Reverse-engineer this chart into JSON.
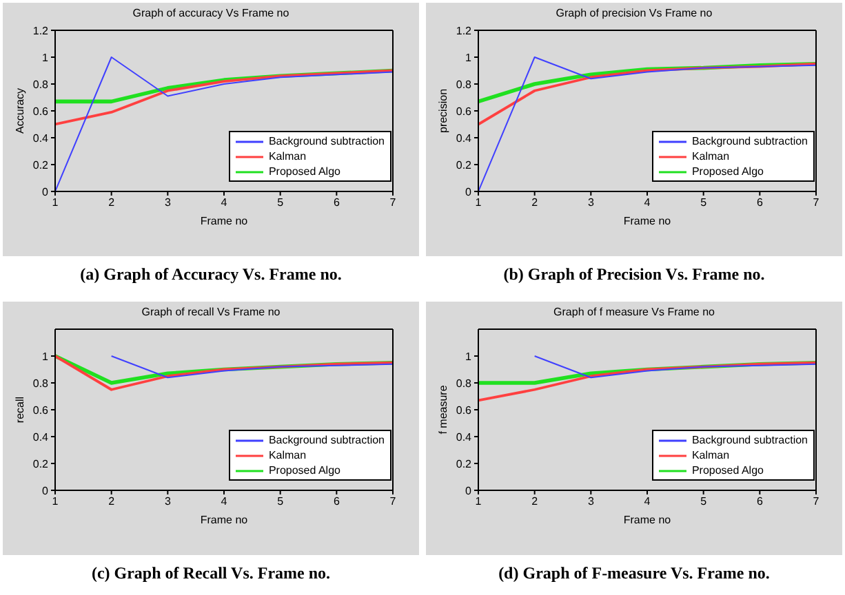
{
  "chart_data": [
    {
      "type": "line",
      "title": "Graph of accuracy Vs Frame no",
      "xlabel": "Frame no",
      "ylabel": "Accuracy",
      "annotations": [
        "(a) Graph of  Accuracy Vs. Frame no."
      ],
      "x": [
        1,
        2,
        3,
        4,
        5,
        6,
        7
      ],
      "xlim": [
        1,
        7
      ],
      "xticks": [
        1,
        2,
        3,
        4,
        5,
        6,
        7
      ],
      "ylim": [
        0,
        1.2
      ],
      "yticks": [
        0,
        0.2,
        0.4,
        0.6,
        0.8,
        1,
        1.2
      ],
      "legend": "bottom right",
      "marker": "none",
      "line_style": "solid",
      "series": [
        {
          "name": "Background subtraction",
          "color": "#4040ff",
          "values": [
            0,
            1,
            0.71,
            0.8,
            0.85,
            0.87,
            0.89
          ]
        },
        {
          "name": "Kalman",
          "color": "#ff4040",
          "values": [
            0.5,
            0.59,
            0.75,
            0.82,
            0.86,
            0.88,
            0.9
          ]
        },
        {
          "name": "Proposed Algo",
          "color": "#20e020",
          "values": [
            0.67,
            0.67,
            0.77,
            0.83,
            0.86,
            0.88,
            0.9
          ]
        }
      ]
    },
    {
      "type": "line",
      "title": "Graph of precision Vs Frame no",
      "xlabel": "Frame no",
      "ylabel": "precision",
      "annotations": [
        "(b) Graph of Precision Vs. Frame no."
      ],
      "x": [
        1,
        2,
        3,
        4,
        5,
        6,
        7
      ],
      "xlim": [
        1,
        7
      ],
      "xticks": [
        1,
        2,
        3,
        4,
        5,
        6,
        7
      ],
      "ylim": [
        0,
        1.2
      ],
      "yticks": [
        0,
        0.2,
        0.4,
        0.6,
        0.8,
        1,
        1.2
      ],
      "legend": "bottom right",
      "marker": "none",
      "line_style": "solid",
      "series": [
        {
          "name": "Background subtraction",
          "color": "#4040ff",
          "values": [
            0,
            1,
            0.84,
            0.89,
            0.92,
            0.93,
            0.94
          ]
        },
        {
          "name": "Kalman",
          "color": "#ff4040",
          "values": [
            0.5,
            0.75,
            0.85,
            0.9,
            0.92,
            0.93,
            0.95
          ]
        },
        {
          "name": "Proposed Algo",
          "color": "#20e020",
          "values": [
            0.67,
            0.8,
            0.87,
            0.91,
            0.92,
            0.94,
            0.95
          ]
        }
      ]
    },
    {
      "type": "line",
      "title": "Graph of recall Vs Frame no",
      "xlabel": "Frame no",
      "ylabel": "recall",
      "annotations": [
        "(c) Graph of Recall Vs. Frame no."
      ],
      "x": [
        1,
        2,
        3,
        4,
        5,
        6,
        7
      ],
      "xlim": [
        1,
        7
      ],
      "xticks": [
        1,
        2,
        3,
        4,
        5,
        6,
        7
      ],
      "ylim": [
        0,
        1.2
      ],
      "yticks": [
        0,
        0.2,
        0.4,
        0.6,
        0.8,
        1
      ],
      "legend": "bottom right",
      "marker": "none",
      "line_style": "solid",
      "series": [
        {
          "name": "Background subtraction",
          "color": "#4040ff",
          "values": [
            null,
            1,
            0.84,
            0.89,
            0.92,
            0.93,
            0.94
          ]
        },
        {
          "name": "Kalman",
          "color": "#ff4040",
          "values": [
            1,
            0.75,
            0.85,
            0.9,
            0.92,
            0.94,
            0.95
          ]
        },
        {
          "name": "Proposed Algo",
          "color": "#20e020",
          "values": [
            1,
            0.8,
            0.87,
            0.9,
            0.92,
            0.94,
            0.95
          ]
        }
      ]
    },
    {
      "type": "line",
      "title": "Graph of f measure Vs Frame no",
      "xlabel": "Frame no",
      "ylabel": "f measure",
      "annotations": [
        "(d) Graph of F-measure Vs. Frame no."
      ],
      "x": [
        1,
        2,
        3,
        4,
        5,
        6,
        7
      ],
      "xlim": [
        1,
        7
      ],
      "xticks": [
        1,
        2,
        3,
        4,
        5,
        6,
        7
      ],
      "ylim": [
        0,
        1.2
      ],
      "yticks": [
        0,
        0.2,
        0.4,
        0.6,
        0.8,
        1
      ],
      "legend": "bottom right",
      "marker": "none",
      "line_style": "solid",
      "series": [
        {
          "name": "Background subtraction",
          "color": "#4040ff",
          "values": [
            null,
            1,
            0.84,
            0.89,
            0.92,
            0.93,
            0.94
          ]
        },
        {
          "name": "Kalman",
          "color": "#ff4040",
          "values": [
            0.67,
            0.75,
            0.85,
            0.9,
            0.92,
            0.94,
            0.95
          ]
        },
        {
          "name": "Proposed Algo",
          "color": "#20e020",
          "values": [
            0.8,
            0.8,
            0.87,
            0.9,
            0.92,
            0.94,
            0.95
          ]
        }
      ]
    }
  ]
}
